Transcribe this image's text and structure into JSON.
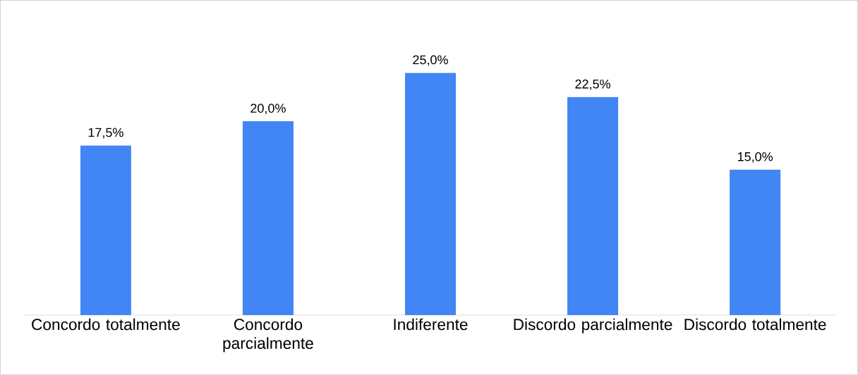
{
  "chart_data": {
    "type": "bar",
    "categories": [
      "Concordo totalmente",
      "Concordo parcialmente",
      "Indiferente",
      "Discordo parcialmente",
      "Discordo totalmente"
    ],
    "values": [
      17.5,
      20.0,
      25.0,
      22.5,
      15.0
    ],
    "value_labels": [
      "17,5%",
      "20,0%",
      "25,0%",
      "22,5%",
      "15,0%"
    ],
    "color": "#4285f4"
  }
}
